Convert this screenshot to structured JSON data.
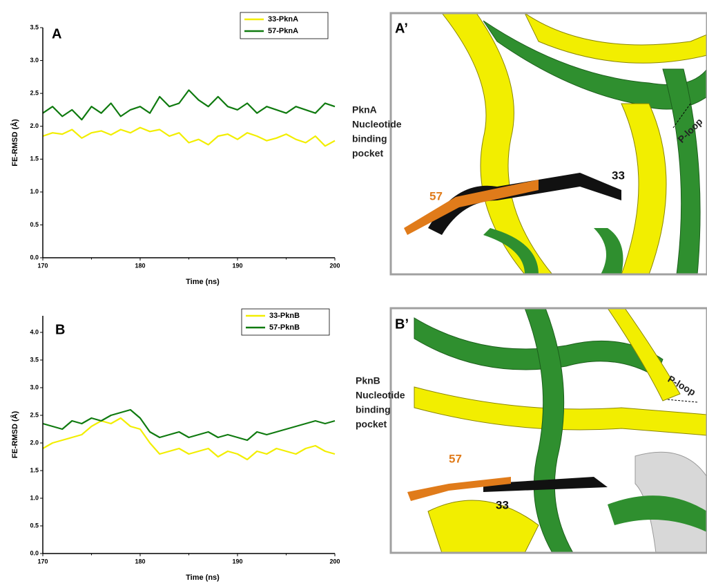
{
  "chart_data": [
    {
      "type": "line",
      "panel_label": "A",
      "x_label": "Time (ns)",
      "y_label": "FE-RMSD (Å)",
      "x": [
        170,
        171,
        172,
        173,
        174,
        175,
        176,
        177,
        178,
        179,
        180,
        181,
        182,
        183,
        184,
        185,
        186,
        187,
        188,
        189,
        190,
        191,
        192,
        193,
        194,
        195,
        196,
        197,
        198,
        199,
        200
      ],
      "xlim": [
        170,
        200
      ],
      "xticks": [
        170,
        180,
        190,
        200
      ],
      "ylim": [
        0,
        3.5
      ],
      "yticks": [
        {
          "value": 0,
          "label": "0.0"
        },
        0.5,
        {
          "value": 1,
          "label": "1.0"
        },
        1.5,
        {
          "value": 2,
          "label": "2.0"
        },
        2.5,
        {
          "value": 3,
          "label": "3.0"
        },
        3.5
      ],
      "series": [
        {
          "name": "33-PknA",
          "color": "#f2ee00",
          "values": [
            1.85,
            1.9,
            1.88,
            1.95,
            1.82,
            1.9,
            1.93,
            1.87,
            1.95,
            1.9,
            1.98,
            1.92,
            1.95,
            1.85,
            1.9,
            1.75,
            1.8,
            1.72,
            1.85,
            1.88,
            1.8,
            1.9,
            1.85,
            1.78,
            1.82,
            1.88,
            1.8,
            1.75,
            1.85,
            1.7,
            1.78
          ]
        },
        {
          "name": "57-PknA",
          "color": "#0f7a0f",
          "values": [
            2.2,
            2.3,
            2.15,
            2.25,
            2.1,
            2.3,
            2.2,
            2.35,
            2.15,
            2.25,
            2.3,
            2.2,
            2.45,
            2.3,
            2.35,
            2.55,
            2.4,
            2.3,
            2.45,
            2.3,
            2.25,
            2.35,
            2.2,
            2.3,
            2.25,
            2.2,
            2.3,
            2.25,
            2.2,
            2.35,
            2.3
          ]
        }
      ]
    },
    {
      "type": "line",
      "panel_label": "B",
      "x_label": "Time (ns)",
      "y_label": "FE-RMSD (Å)",
      "x": [
        170,
        171,
        172,
        173,
        174,
        175,
        176,
        177,
        178,
        179,
        180,
        181,
        182,
        183,
        184,
        185,
        186,
        187,
        188,
        189,
        190,
        191,
        192,
        193,
        194,
        195,
        196,
        197,
        198,
        199,
        200
      ],
      "xlim": [
        170,
        200
      ],
      "xticks": [
        170,
        180,
        190,
        200
      ],
      "ylim": [
        0,
        4.3
      ],
      "yticks": [
        {
          "value": 0,
          "label": "0.0"
        },
        0.5,
        {
          "value": 1,
          "label": "1.0"
        },
        1.5,
        {
          "value": 2,
          "label": "2.0"
        },
        2.5,
        {
          "value": 3,
          "label": "3.0"
        },
        3.5,
        {
          "value": 4,
          "label": "4.0"
        }
      ],
      "series": [
        {
          "name": "33-PknB",
          "color": "#f2ee00",
          "values": [
            1.9,
            2.0,
            2.05,
            2.1,
            2.15,
            2.3,
            2.4,
            2.35,
            2.45,
            2.3,
            2.25,
            2.0,
            1.8,
            1.85,
            1.9,
            1.8,
            1.85,
            1.9,
            1.75,
            1.85,
            1.8,
            1.7,
            1.85,
            1.8,
            1.9,
            1.85,
            1.8,
            1.9,
            1.95,
            1.85,
            1.8
          ]
        },
        {
          "name": "57-PknB",
          "color": "#0f7a0f",
          "values": [
            2.35,
            2.3,
            2.25,
            2.4,
            2.35,
            2.45,
            2.4,
            2.5,
            2.55,
            2.6,
            2.45,
            2.2,
            2.1,
            2.15,
            2.2,
            2.1,
            2.15,
            2.2,
            2.1,
            2.15,
            2.1,
            2.05,
            2.2,
            2.15,
            2.2,
            2.25,
            2.3,
            2.35,
            2.4,
            2.35,
            2.4
          ]
        }
      ]
    }
  ],
  "panels": [
    {
      "label": "A’",
      "side_label": [
        "PknA",
        "Nucleotide",
        "binding",
        "pocket"
      ],
      "loop": "P-loop",
      "ligand_a": "33",
      "ligand_b": "57"
    },
    {
      "label": "B’",
      "side_label": [
        "PknB",
        "Nucleotide",
        "binding",
        "pocket"
      ],
      "loop": "P-loop",
      "ligand_a": "33",
      "ligand_b": "57"
    }
  ]
}
